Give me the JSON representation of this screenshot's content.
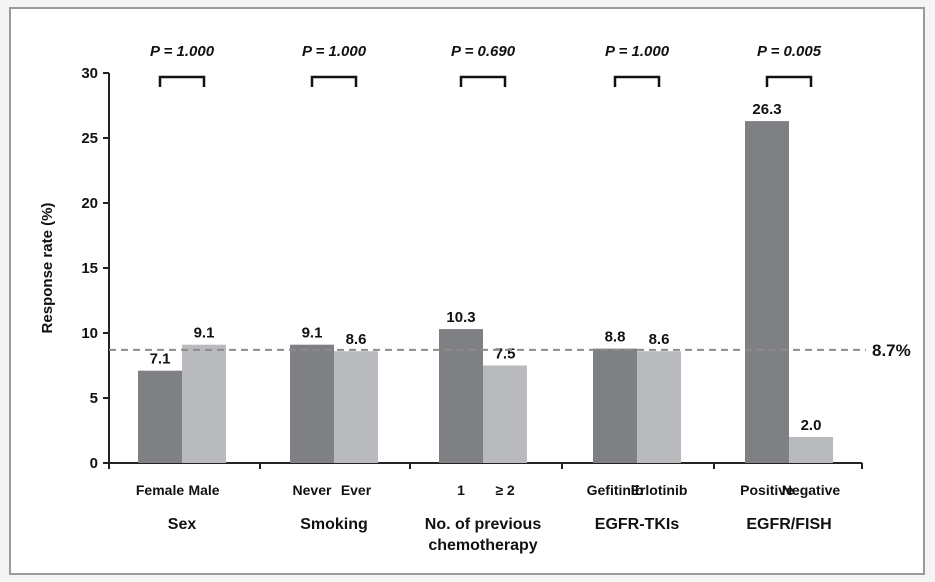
{
  "chart_data": {
    "type": "bar",
    "title": "",
    "ylabel": "Response rate (%)",
    "ylim": [
      0,
      30
    ],
    "yticks": [
      "0",
      "5",
      "10",
      "15",
      "20",
      "25",
      "30"
    ],
    "grid": false,
    "groups": [
      {
        "label": "Sex",
        "p_value": "P = 1.000",
        "bars": [
          {
            "category": "Female",
            "value": 7.1,
            "value_label": "7.1",
            "color": "#7f8083"
          },
          {
            "category": "Male",
            "value": 9.1,
            "value_label": "9.1",
            "color": "#b9babd"
          }
        ]
      },
      {
        "label": "Smoking",
        "p_value": "P = 1.000",
        "bars": [
          {
            "category": "Never",
            "value": 9.1,
            "value_label": "9.1",
            "color": "#7f8083"
          },
          {
            "category": "Ever",
            "value": 8.6,
            "value_label": "8.6",
            "color": "#b9babd"
          }
        ]
      },
      {
        "label": "No. of previous\nchemotherapy",
        "p_value": "P = 0.690",
        "bars": [
          {
            "category": "1",
            "value": 10.3,
            "value_label": "10.3",
            "color": "#7f8083"
          },
          {
            "category": "≥ 2",
            "value": 7.5,
            "value_label": "7.5",
            "color": "#b9babd"
          }
        ]
      },
      {
        "label": "EGFR-TKIs",
        "p_value": "P = 1.000",
        "bars": [
          {
            "category": "Gefitinib",
            "value": 8.8,
            "value_label": "8.8",
            "color": "#7f8083"
          },
          {
            "category": "Erlotinib",
            "value": 8.6,
            "value_label": "8.6",
            "color": "#b9babd"
          }
        ]
      },
      {
        "label": "EGFR/FISH",
        "p_value": "P = 0.005",
        "bars": [
          {
            "category": "Positive",
            "value": 26.3,
            "value_label": "26.3",
            "color": "#7f8083"
          },
          {
            "category": "Negative",
            "value": 2.0,
            "value_label": "2.0",
            "color": "#b9babd"
          }
        ]
      }
    ],
    "reference_line": {
      "value": 8.7,
      "label": "8.7%",
      "style": "dashed",
      "color": "#8c8c8c"
    }
  }
}
